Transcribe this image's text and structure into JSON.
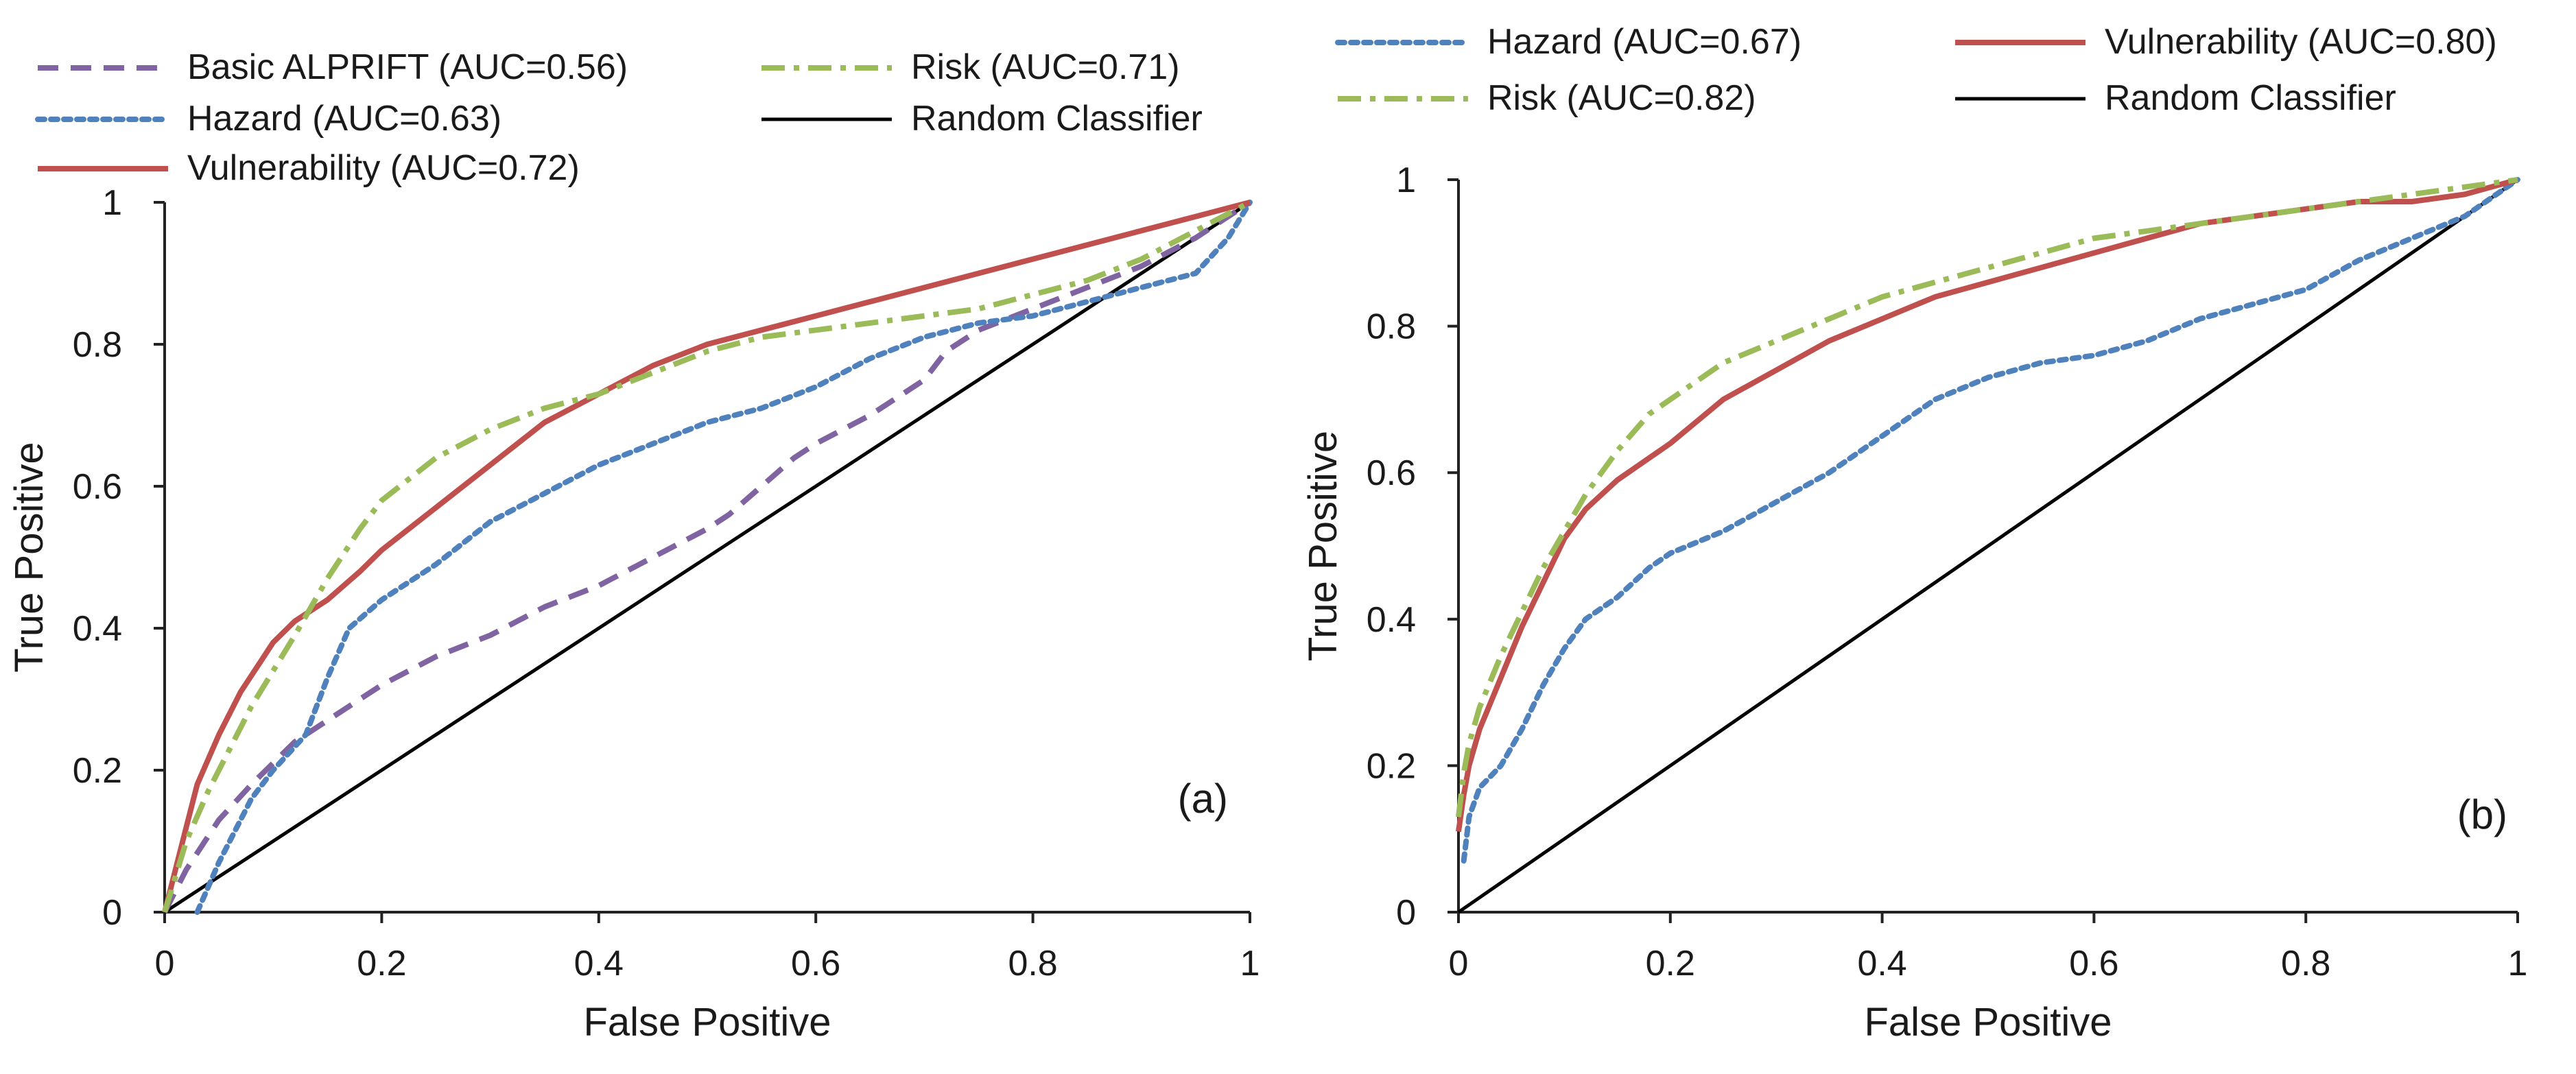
{
  "chart_data": [
    {
      "type": "line",
      "title": "",
      "panel_label": "(a)",
      "xlabel": "False Positive",
      "ylabel": "True Positive",
      "xlim": [
        0,
        1
      ],
      "ylim": [
        0,
        1
      ],
      "grid": false,
      "legend_position": "top",
      "x_ticks": [
        "0",
        "0.2",
        "0.4",
        "0.6",
        "0.8",
        "1"
      ],
      "y_ticks": [
        "0",
        "0.2",
        "0.4",
        "0.6",
        "0.8",
        "1"
      ],
      "series": [
        {
          "name": "Basic ALPRIFT (AUC=0.56)",
          "color": "#8064a2",
          "style": "dash",
          "x": [
            0,
            0.02,
            0.05,
            0.08,
            0.1,
            0.12,
            0.15,
            0.2,
            0.25,
            0.3,
            0.35,
            0.4,
            0.45,
            0.5,
            0.52,
            0.55,
            0.58,
            0.6,
            0.65,
            0.7,
            0.72,
            0.75,
            0.8,
            0.85,
            0.9,
            0.95,
            1
          ],
          "y": [
            0,
            0.06,
            0.13,
            0.18,
            0.21,
            0.24,
            0.27,
            0.32,
            0.36,
            0.39,
            0.43,
            0.46,
            0.5,
            0.54,
            0.56,
            0.6,
            0.64,
            0.66,
            0.7,
            0.75,
            0.79,
            0.82,
            0.85,
            0.88,
            0.91,
            0.95,
            1
          ]
        },
        {
          "name": "Hazard (AUC=0.63)",
          "color": "#4f81bd",
          "style": "dot",
          "x": [
            0.03,
            0.05,
            0.08,
            0.1,
            0.13,
            0.15,
            0.17,
            0.2,
            0.25,
            0.3,
            0.35,
            0.4,
            0.45,
            0.5,
            0.55,
            0.6,
            0.65,
            0.7,
            0.75,
            0.8,
            0.85,
            0.9,
            0.95,
            0.98,
            1
          ],
          "y": [
            0,
            0.07,
            0.16,
            0.2,
            0.25,
            0.33,
            0.4,
            0.44,
            0.49,
            0.55,
            0.59,
            0.63,
            0.66,
            0.69,
            0.71,
            0.74,
            0.78,
            0.81,
            0.83,
            0.84,
            0.86,
            0.88,
            0.9,
            0.95,
            1
          ]
        },
        {
          "name": "Vulnerability (AUC=0.72)",
          "color": "#c0504d",
          "style": "solid",
          "x": [
            0,
            0.01,
            0.02,
            0.03,
            0.05,
            0.07,
            0.1,
            0.12,
            0.15,
            0.18,
            0.2,
            0.25,
            0.3,
            0.35,
            0.4,
            0.45,
            0.5,
            0.55,
            0.6,
            0.65,
            0.7,
            0.75,
            0.8,
            0.85,
            0.9,
            0.95,
            1
          ],
          "y": [
            0,
            0.06,
            0.12,
            0.18,
            0.25,
            0.31,
            0.38,
            0.41,
            0.44,
            0.48,
            0.51,
            0.57,
            0.63,
            0.69,
            0.73,
            0.77,
            0.8,
            0.82,
            0.84,
            0.86,
            0.88,
            0.9,
            0.92,
            0.94,
            0.96,
            0.98,
            1
          ]
        },
        {
          "name": "Risk (AUC=0.71)",
          "color": "#9bbb59",
          "style": "dashdot",
          "x": [
            0,
            0.01,
            0.02,
            0.04,
            0.06,
            0.08,
            0.1,
            0.12,
            0.15,
            0.18,
            0.2,
            0.25,
            0.3,
            0.35,
            0.4,
            0.45,
            0.5,
            0.55,
            0.6,
            0.65,
            0.7,
            0.75,
            0.8,
            0.85,
            0.9,
            0.95,
            1
          ],
          "y": [
            0,
            0.05,
            0.1,
            0.17,
            0.23,
            0.29,
            0.34,
            0.39,
            0.47,
            0.54,
            0.58,
            0.64,
            0.68,
            0.71,
            0.73,
            0.76,
            0.79,
            0.81,
            0.82,
            0.83,
            0.84,
            0.85,
            0.87,
            0.89,
            0.92,
            0.96,
            1
          ]
        },
        {
          "name": "Random Classifier",
          "color": "#000000",
          "style": "solid",
          "x": [
            0,
            1
          ],
          "y": [
            0,
            1
          ]
        }
      ]
    },
    {
      "type": "line",
      "title": "",
      "panel_label": "(b)",
      "xlabel": "False Positive",
      "ylabel": "True Positive",
      "xlim": [
        0,
        1
      ],
      "ylim": [
        0,
        1
      ],
      "grid": false,
      "legend_position": "top",
      "x_ticks": [
        "0",
        "0.2",
        "0.4",
        "0.6",
        "0.8",
        "1"
      ],
      "y_ticks": [
        "0",
        "0.2",
        "0.4",
        "0.6",
        "0.8",
        "1"
      ],
      "series": [
        {
          "name": "Hazard (AUC=0.67)",
          "color": "#4f81bd",
          "style": "dot",
          "x": [
            0.005,
            0.01,
            0.02,
            0.04,
            0.06,
            0.08,
            0.1,
            0.12,
            0.15,
            0.18,
            0.2,
            0.25,
            0.3,
            0.35,
            0.4,
            0.45,
            0.5,
            0.55,
            0.6,
            0.65,
            0.7,
            0.75,
            0.8,
            0.85,
            0.9,
            0.95,
            1
          ],
          "y": [
            0.07,
            0.13,
            0.17,
            0.2,
            0.25,
            0.31,
            0.36,
            0.4,
            0.43,
            0.47,
            0.49,
            0.52,
            0.56,
            0.6,
            0.65,
            0.7,
            0.73,
            0.75,
            0.76,
            0.78,
            0.81,
            0.83,
            0.85,
            0.89,
            0.92,
            0.95,
            1
          ]
        },
        {
          "name": "Vulnerability (AUC=0.80)",
          "color": "#c0504d",
          "style": "solid",
          "x": [
            0,
            0.005,
            0.01,
            0.02,
            0.04,
            0.06,
            0.08,
            0.1,
            0.12,
            0.15,
            0.2,
            0.25,
            0.3,
            0.35,
            0.4,
            0.45,
            0.5,
            0.55,
            0.6,
            0.65,
            0.7,
            0.75,
            0.8,
            0.85,
            0.9,
            0.95,
            1
          ],
          "y": [
            0.11,
            0.16,
            0.2,
            0.25,
            0.32,
            0.39,
            0.45,
            0.51,
            0.55,
            0.59,
            0.64,
            0.7,
            0.74,
            0.78,
            0.81,
            0.84,
            0.86,
            0.88,
            0.9,
            0.92,
            0.94,
            0.95,
            0.96,
            0.97,
            0.97,
            0.98,
            1
          ]
        },
        {
          "name": "Risk (AUC=0.82)",
          "color": "#9bbb59",
          "style": "dashdot",
          "x": [
            0,
            0.005,
            0.01,
            0.02,
            0.04,
            0.06,
            0.08,
            0.1,
            0.12,
            0.15,
            0.18,
            0.2,
            0.25,
            0.3,
            0.35,
            0.4,
            0.45,
            0.5,
            0.55,
            0.6,
            0.65,
            0.7,
            0.75,
            0.8,
            0.85,
            0.9,
            0.95,
            1
          ],
          "y": [
            0.13,
            0.19,
            0.23,
            0.28,
            0.35,
            0.41,
            0.47,
            0.52,
            0.57,
            0.63,
            0.68,
            0.7,
            0.75,
            0.78,
            0.81,
            0.84,
            0.86,
            0.88,
            0.9,
            0.92,
            0.93,
            0.94,
            0.95,
            0.96,
            0.97,
            0.98,
            0.99,
            1
          ]
        },
        {
          "name": "Random Classifier",
          "color": "#000000",
          "style": "solid",
          "x": [
            0,
            1
          ],
          "y": [
            0,
            1
          ]
        }
      ]
    }
  ]
}
